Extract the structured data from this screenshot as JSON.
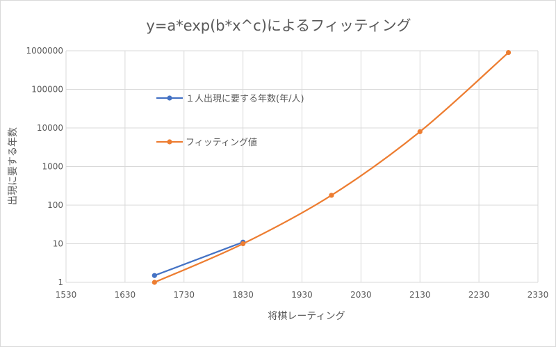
{
  "chart_data": {
    "type": "line",
    "title": "y=a*exp(b*x^c)によるフィッティング",
    "xlabel": "将棋レーティング",
    "ylabel": "出現に要する年数",
    "x_scale": "linear",
    "y_scale": "log",
    "xlim": [
      1530,
      2330
    ],
    "ylim": [
      1,
      1000000
    ],
    "x_ticks": [
      "1530",
      "1630",
      "1730",
      "1830",
      "1930",
      "2030",
      "2130",
      "2230",
      "2330"
    ],
    "y_ticks": [
      "1",
      "10",
      "100",
      "1000",
      "10000",
      "100000",
      "1000000"
    ],
    "grid": true,
    "legend_position": "upper-left inside plot",
    "series": [
      {
        "name": "１人出現に要する年数(年/人)",
        "color": "#4472C4",
        "x": [
          1680,
          1830
        ],
        "y": [
          1.5,
          11
        ]
      },
      {
        "name": "フィッティング値",
        "color": "#ED7D31",
        "x": [
          1680,
          1830,
          1980,
          2130,
          2280
        ],
        "y": [
          1,
          10,
          180,
          8000,
          900000
        ]
      }
    ]
  }
}
